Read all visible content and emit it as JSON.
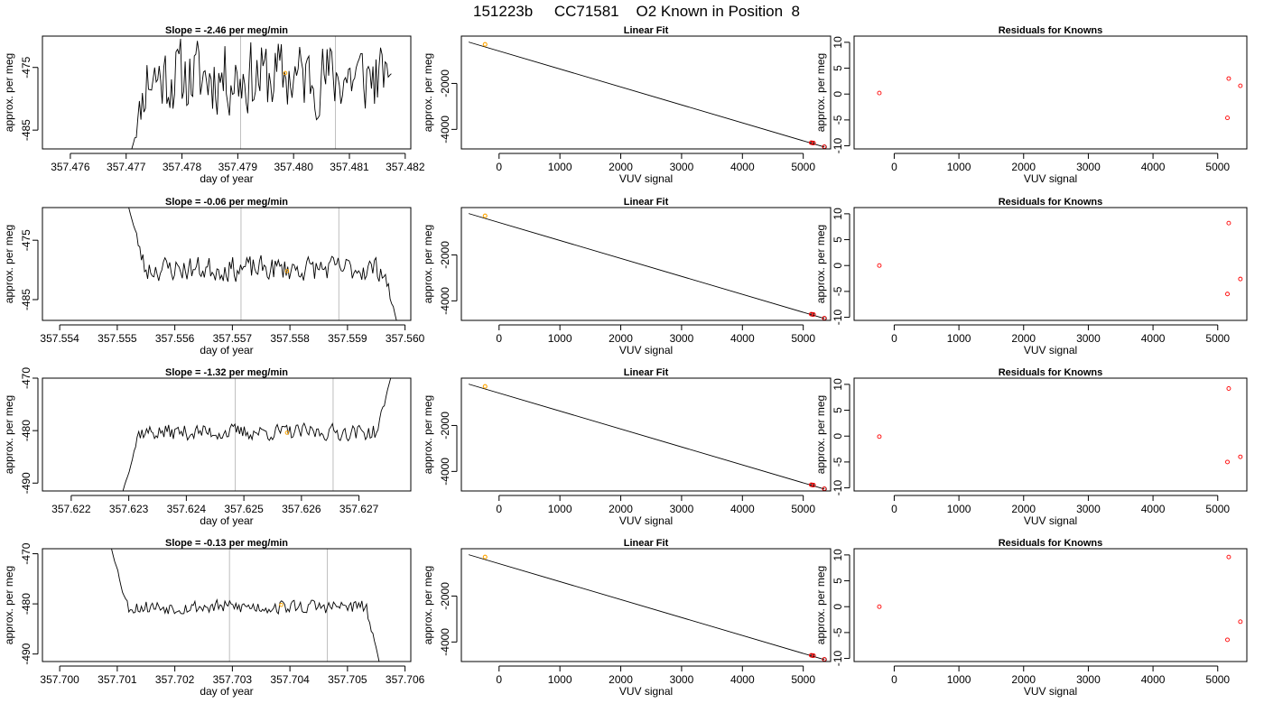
{
  "page_title": "151223b     CC71581    O2 Known in Position  8",
  "colors": {
    "trace": "#000000",
    "vline": "#bebebe",
    "orange": "#ffa500",
    "red": "#ff0000",
    "fit": "#000000"
  },
  "chart_data": [
    {
      "row": 0,
      "type": "line",
      "title": "Slope =  -2.46  per meg/min",
      "xlabel": "day of year",
      "ylabel": "approx. per meg",
      "xlim": [
        357.4755,
        357.4821
      ],
      "ylim": [
        -488,
        -470
      ],
      "xticks": [
        "357.476",
        "357.477",
        "357.478",
        "357.479",
        "357.480",
        "357.481",
        "357.482"
      ],
      "xtick_values": [
        357.476,
        357.477,
        357.478,
        357.479,
        357.48,
        357.481,
        357.482
      ],
      "yticks": [
        "-475",
        "-485"
      ],
      "ytick_values": [
        -475,
        -485
      ],
      "vlines": [
        357.47905,
        357.48075
      ],
      "marker": {
        "x": 357.47985,
        "y": -475.9
      },
      "trace": {
        "x_start": 357.4771,
        "x_end": 357.48175,
        "start_y": -488,
        "end_y": -476,
        "mean": -476.5,
        "amp": 6.5,
        "seed": 11
      }
    },
    {
      "row": 0,
      "type": "scatter",
      "title": "Linear Fit",
      "xlabel": "VUV signal",
      "ylabel": "approx. per meg",
      "xlim": [
        -620,
        5450
      ],
      "ylim": [
        -4850,
        60
      ],
      "xticks": [
        "0",
        "1000",
        "2000",
        "3000",
        "4000",
        "5000"
      ],
      "xtick_values": [
        0,
        1000,
        2000,
        3000,
        4000,
        5000
      ],
      "yticks": [
        "-2000",
        "-4000"
      ],
      "ytick_values": [
        -2000,
        -4000
      ],
      "fit_line": {
        "x": [
          -500,
          5350
        ],
        "y": [
          -200,
          -4770
        ]
      },
      "points_orange": [
        [
          -230,
          -300
        ]
      ],
      "points_red": [
        [
          5130,
          -4580
        ],
        [
          5170,
          -4595
        ],
        [
          5345,
          -4755
        ]
      ],
      "points_black": [
        [
          5150,
          -4590
        ],
        [
          5350,
          -4760
        ]
      ]
    },
    {
      "row": 0,
      "type": "scatter",
      "title": "Residuals for Knowns",
      "xlabel": "VUV signal",
      "ylabel": "approx. per meg",
      "xlim": [
        -620,
        5450
      ],
      "ylim": [
        -10.6,
        11.2
      ],
      "xticks": [
        "0",
        "1000",
        "2000",
        "3000",
        "4000",
        "5000"
      ],
      "xtick_values": [
        0,
        1000,
        2000,
        3000,
        4000,
        5000
      ],
      "yticks": [
        "-10",
        "-5",
        "0",
        "5",
        "10"
      ],
      "ytick_values": [
        -10,
        -5,
        0,
        5,
        10
      ],
      "points_red": [
        [
          -230,
          0.2
        ],
        [
          5170,
          3.0
        ],
        [
          5350,
          1.6
        ],
        [
          5150,
          -4.6
        ]
      ]
    },
    {
      "row": 1,
      "type": "line",
      "title": "Slope =  -0.06  per meg/min",
      "xlabel": "day of year",
      "ylabel": "approx. per meg",
      "xlim": [
        357.5537,
        357.5601
      ],
      "ylim": [
        -488.5,
        -469.5
      ],
      "xticks": [
        "357.554",
        "357.555",
        "357.556",
        "357.557",
        "357.558",
        "357.559",
        "357.560"
      ],
      "xtick_values": [
        357.554,
        357.555,
        357.556,
        357.557,
        357.558,
        357.559,
        357.56
      ],
      "yticks": [
        "-475",
        "-485"
      ],
      "ytick_values": [
        -475,
        -485
      ],
      "vlines": [
        357.55715,
        357.55885
      ],
      "marker": {
        "x": 357.55795,
        "y": -480.2
      },
      "trace": {
        "x_start": 357.5552,
        "x_end": 357.55985,
        "start_y": -469.5,
        "end_y": -488.5,
        "mean": -479.8,
        "amp": 2.3,
        "seed": 23
      }
    },
    {
      "row": 1,
      "type": "scatter",
      "title": "Linear Fit",
      "xlabel": "VUV signal",
      "ylabel": "approx. per meg",
      "xlim": [
        -620,
        5450
      ],
      "ylim": [
        -4850,
        60
      ],
      "xticks": [
        "0",
        "1000",
        "2000",
        "3000",
        "4000",
        "5000"
      ],
      "xtick_values": [
        0,
        1000,
        2000,
        3000,
        4000,
        5000
      ],
      "yticks": [
        "-2000",
        "-4000"
      ],
      "ytick_values": [
        -2000,
        -4000
      ],
      "fit_line": {
        "x": [
          -500,
          5350
        ],
        "y": [
          -200,
          -4770
        ]
      },
      "points_orange": [
        [
          -230,
          -300
        ]
      ],
      "points_red": [
        [
          5130,
          -4580
        ],
        [
          5170,
          -4595
        ],
        [
          5345,
          -4755
        ]
      ],
      "points_black": [
        [
          5150,
          -4590
        ],
        [
          5350,
          -4760
        ]
      ]
    },
    {
      "row": 1,
      "type": "scatter",
      "title": "Residuals for Knowns",
      "xlabel": "VUV signal",
      "ylabel": "approx. per meg",
      "xlim": [
        -620,
        5450
      ],
      "ylim": [
        -10.6,
        11.2
      ],
      "xticks": [
        "0",
        "1000",
        "2000",
        "3000",
        "4000",
        "5000"
      ],
      "xtick_values": [
        0,
        1000,
        2000,
        3000,
        4000,
        5000
      ],
      "yticks": [
        "-10",
        "-5",
        "0",
        "5",
        "10"
      ],
      "ytick_values": [
        -10,
        -5,
        0,
        5,
        10
      ],
      "points_red": [
        [
          -230,
          0.0
        ],
        [
          5170,
          8.2
        ],
        [
          5350,
          -2.6
        ],
        [
          5150,
          -5.5
        ]
      ]
    },
    {
      "row": 2,
      "type": "line",
      "title": "Slope =  -1.32  per meg/min",
      "xlabel": "day of year",
      "ylabel": "approx. per meg",
      "xlim": [
        357.6215,
        357.6279
      ],
      "ylim": [
        -491.5,
        -470
      ],
      "xticks": [
        "357.622",
        "357.623",
        "357.624",
        "357.625",
        "357.626",
        "357.627"
      ],
      "xtick_values": [
        357.622,
        357.623,
        357.624,
        357.625,
        357.626,
        357.627
      ],
      "yticks": [
        "-470",
        "-480",
        "-490"
      ],
      "ytick_values": [
        -470,
        -480,
        -490
      ],
      "vlines": [
        357.62485,
        357.62655
      ],
      "marker": {
        "x": 357.62575,
        "y": -480.4
      },
      "trace": {
        "x_start": 357.6229,
        "x_end": 357.62755,
        "start_y": -491.5,
        "end_y": -470,
        "mean": -480.3,
        "amp": 1.7,
        "seed": 37
      }
    },
    {
      "row": 2,
      "type": "scatter",
      "title": "Linear Fit",
      "xlabel": "VUV signal",
      "ylabel": "approx. per meg",
      "xlim": [
        -620,
        5450
      ],
      "ylim": [
        -4850,
        60
      ],
      "xticks": [
        "0",
        "1000",
        "2000",
        "3000",
        "4000",
        "5000"
      ],
      "xtick_values": [
        0,
        1000,
        2000,
        3000,
        4000,
        5000
      ],
      "yticks": [
        "-2000",
        "-4000"
      ],
      "ytick_values": [
        -2000,
        -4000
      ],
      "fit_line": {
        "x": [
          -500,
          5350
        ],
        "y": [
          -200,
          -4770
        ]
      },
      "points_orange": [
        [
          -230,
          -300
        ]
      ],
      "points_red": [
        [
          5130,
          -4580
        ],
        [
          5170,
          -4595
        ],
        [
          5345,
          -4755
        ]
      ],
      "points_black": [
        [
          5150,
          -4590
        ],
        [
          5350,
          -4760
        ]
      ]
    },
    {
      "row": 2,
      "type": "scatter",
      "title": "Residuals for Knowns",
      "xlabel": "VUV signal",
      "ylabel": "approx. per meg",
      "xlim": [
        -620,
        5450
      ],
      "ylim": [
        -10.6,
        11.2
      ],
      "xticks": [
        "0",
        "1000",
        "2000",
        "3000",
        "4000",
        "5000"
      ],
      "xtick_values": [
        0,
        1000,
        2000,
        3000,
        4000,
        5000
      ],
      "yticks": [
        "-10",
        "-5",
        "0",
        "5",
        "10"
      ],
      "ytick_values": [
        -10,
        -5,
        0,
        5,
        10
      ],
      "points_red": [
        [
          -230,
          -0.1
        ],
        [
          5170,
          9.2
        ],
        [
          5350,
          -4.0
        ],
        [
          5150,
          -5.0
        ]
      ]
    },
    {
      "row": 3,
      "type": "line",
      "title": "Slope =  -0.13  per meg/min",
      "xlabel": "day of year",
      "ylabel": "approx. per meg",
      "xlim": [
        357.6997,
        357.7061
      ],
      "ylim": [
        -491.5,
        -469
      ],
      "xticks": [
        "357.700",
        "357.701",
        "357.702",
        "357.703",
        "357.704",
        "357.705",
        "357.706"
      ],
      "xtick_values": [
        357.7,
        357.701,
        357.702,
        357.703,
        357.704,
        357.705,
        357.706
      ],
      "yticks": [
        "-470",
        "-480",
        "-490"
      ],
      "ytick_values": [
        -470,
        -480,
        -490
      ],
      "vlines": [
        357.70295,
        357.70465
      ],
      "marker": {
        "x": 357.70385,
        "y": -480.2
      },
      "trace": {
        "x_start": 357.7009,
        "x_end": 357.70555,
        "start_y": -469,
        "end_y": -491.5,
        "mean": -480.6,
        "amp": 1.6,
        "seed": 53
      }
    },
    {
      "row": 3,
      "type": "scatter",
      "title": "Linear Fit",
      "xlabel": "VUV signal",
      "ylabel": "approx. per meg",
      "xlim": [
        -620,
        5450
      ],
      "ylim": [
        -4850,
        60
      ],
      "xticks": [
        "0",
        "1000",
        "2000",
        "3000",
        "4000",
        "5000"
      ],
      "xtick_values": [
        0,
        1000,
        2000,
        3000,
        4000,
        5000
      ],
      "yticks": [
        "-2000",
        "-4000"
      ],
      "ytick_values": [
        -2000,
        -4000
      ],
      "fit_line": {
        "x": [
          -500,
          5350
        ],
        "y": [
          -200,
          -4770
        ]
      },
      "points_orange": [
        [
          -230,
          -300
        ]
      ],
      "points_red": [
        [
          5130,
          -4580
        ],
        [
          5170,
          -4595
        ],
        [
          5345,
          -4755
        ]
      ],
      "points_black": [
        [
          5150,
          -4590
        ],
        [
          5350,
          -4760
        ]
      ]
    },
    {
      "row": 3,
      "type": "scatter",
      "title": "Residuals for Knowns",
      "xlabel": "VUV signal",
      "ylabel": "approx. per meg",
      "xlim": [
        -620,
        5450
      ],
      "ylim": [
        -10.6,
        11.2
      ],
      "xticks": [
        "0",
        "1000",
        "2000",
        "3000",
        "4000",
        "5000"
      ],
      "xtick_values": [
        0,
        1000,
        2000,
        3000,
        4000,
        5000
      ],
      "yticks": [
        "-10",
        "-5",
        "0",
        "5",
        "10"
      ],
      "ytick_values": [
        -10,
        -5,
        0,
        5,
        10
      ],
      "points_red": [
        [
          -230,
          0.0
        ],
        [
          5170,
          9.6
        ],
        [
          5350,
          -2.9
        ],
        [
          5150,
          -6.4
        ]
      ]
    }
  ]
}
